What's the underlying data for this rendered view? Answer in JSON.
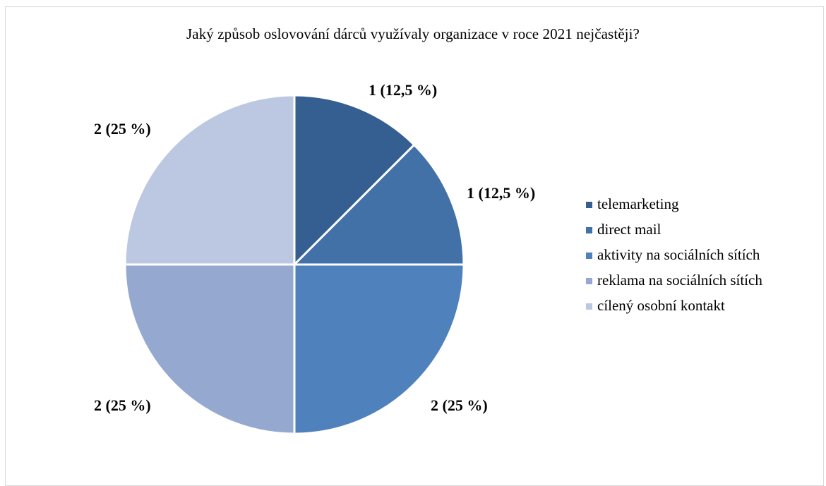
{
  "chart_data": {
    "type": "pie",
    "title": "Jaký způsob oslovování dárců využívaly organizace v roce 2021 nejčastěji?",
    "categories": [
      "telemarketing",
      "direct mail",
      "aktivity na sociálních sítích",
      "reklama na sociálních sítích",
      "cílený osobní kontakt"
    ],
    "values": [
      1,
      1,
      2,
      2,
      2
    ],
    "data_labels": [
      "1 (12,5 %)",
      "1 (12,5 %)",
      "2 (25 %)",
      "2 (25 %)",
      "2 (25 %)"
    ],
    "colors": [
      "#355E91",
      "#4271A8",
      "#4F81BD",
      "#95A9D0",
      "#BCC8E1"
    ],
    "start_angle": "12 o'clock",
    "direction": "clockwise",
    "legend_position": "right"
  }
}
